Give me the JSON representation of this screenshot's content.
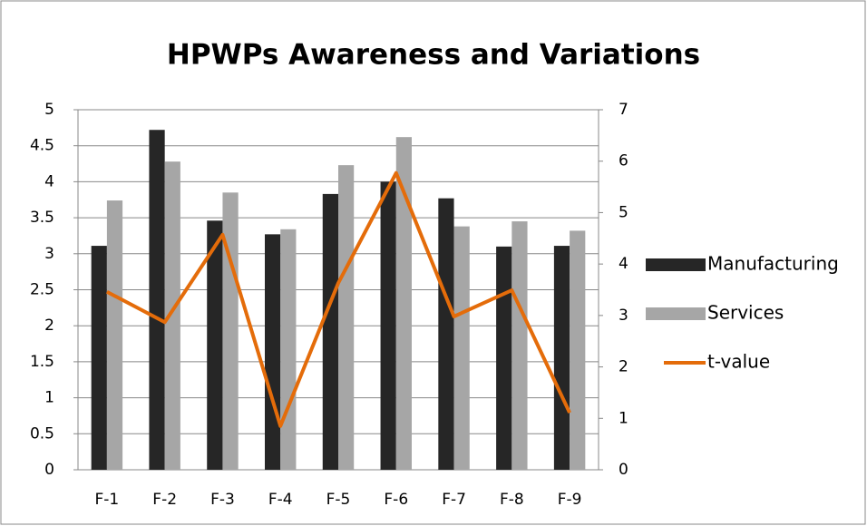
{
  "chart_data": {
    "type": "bar_line",
    "title": "HPWPs Awareness and Variations",
    "categories": [
      "F-1",
      "F-2",
      "F-3",
      "F-4",
      "F-5",
      "F-6",
      "F-7",
      "F-8",
      "F-9"
    ],
    "series": [
      {
        "name": "Manufacturing",
        "color": "#262626",
        "type": "bar",
        "values": [
          3.11,
          4.72,
          3.46,
          3.27,
          3.83,
          4.0,
          3.77,
          3.1,
          3.11
        ]
      },
      {
        "name": "Services",
        "color": "#a6a6a6",
        "type": "bar",
        "values": [
          3.74,
          4.28,
          3.85,
          3.34,
          4.23,
          4.62,
          3.38,
          3.45,
          3.32
        ]
      },
      {
        "name": "t-value",
        "color": "#e46c0a",
        "type": "line",
        "axis": "y2",
        "values": [
          3.46,
          2.87,
          4.57,
          0.85,
          3.63,
          5.77,
          2.98,
          3.49,
          1.11
        ]
      }
    ],
    "ylim": [
      0,
      5
    ],
    "yticks": [
      0,
      0.5,
      1,
      1.5,
      2,
      2.5,
      3,
      3.5,
      4,
      4.5,
      5
    ],
    "y2lim": [
      0,
      7
    ],
    "y2ticks": [
      0,
      1,
      2,
      3,
      4,
      5,
      6,
      7
    ],
    "grid": true,
    "legend": "right"
  }
}
